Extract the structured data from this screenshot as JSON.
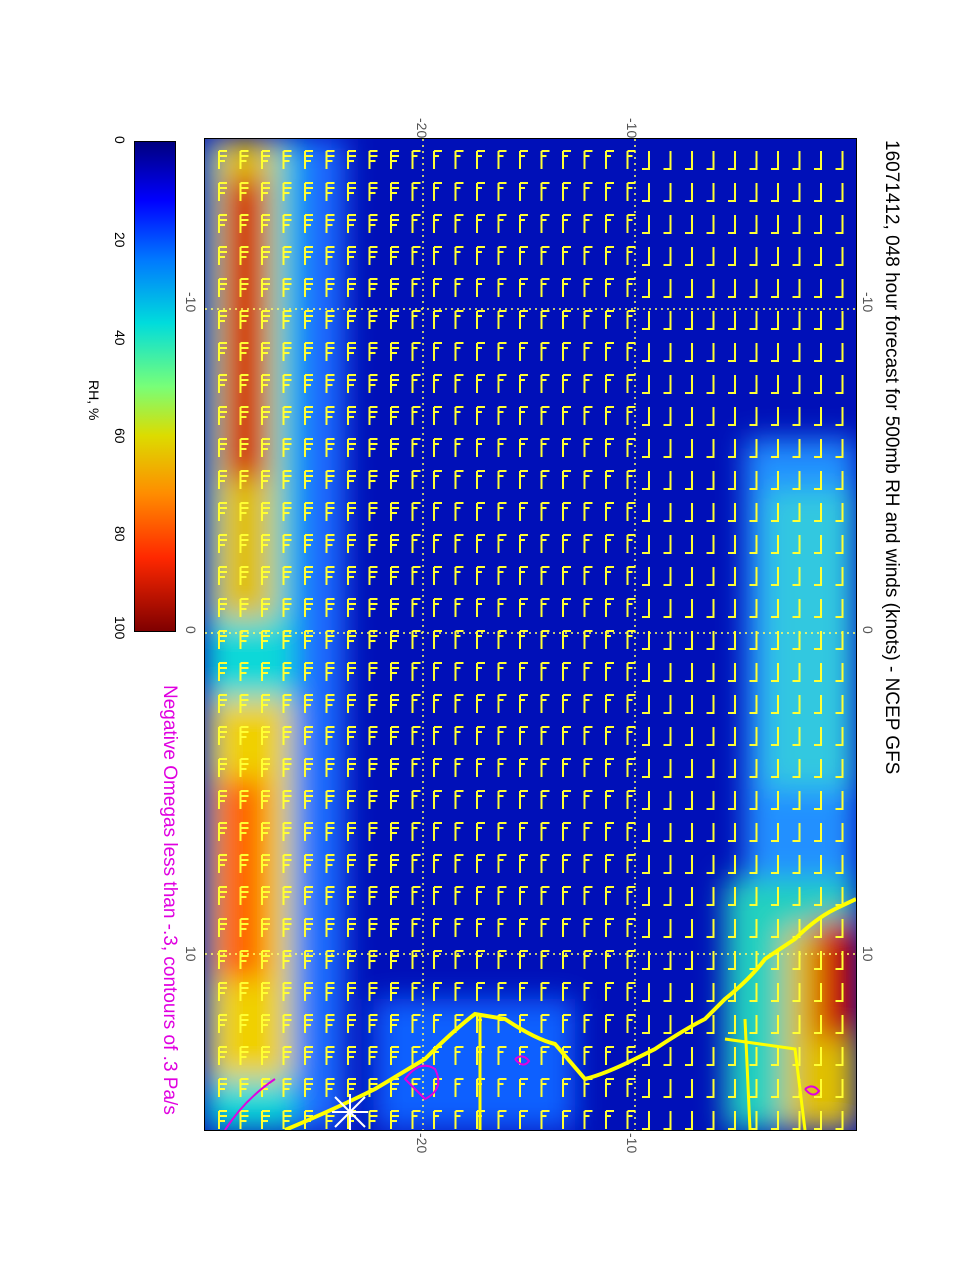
{
  "title": "16071412, 048 hour forecast for 500mb RH and winds (knots) - NCEP GFS",
  "subtitle": "Negative Omegas less than -.3, contours of .3 Pa/s",
  "colorbar": {
    "title": "RH, %",
    "ticks": [
      "0",
      "20",
      "40",
      "60",
      "80",
      "100"
    ],
    "colors": [
      "#00007f",
      "#0000ff",
      "#0078ff",
      "#00dcdc",
      "#78ff78",
      "#dcdc00",
      "#ff8c00",
      "#ff2800",
      "#7f0000"
    ]
  },
  "axes": {
    "top_labels": [
      "-20",
      "-10"
    ],
    "bottom_labels": [
      "-20",
      "-10"
    ],
    "left_labels": [
      "-10",
      "0",
      "10"
    ],
    "right_labels": [
      "-10",
      "0",
      "10"
    ]
  },
  "map": {
    "wind_barb_color": "#ffff33",
    "coastline_color": "#ffff00",
    "omega_contour_color": "#e000e0",
    "gridline_color": "#ffff66"
  }
}
